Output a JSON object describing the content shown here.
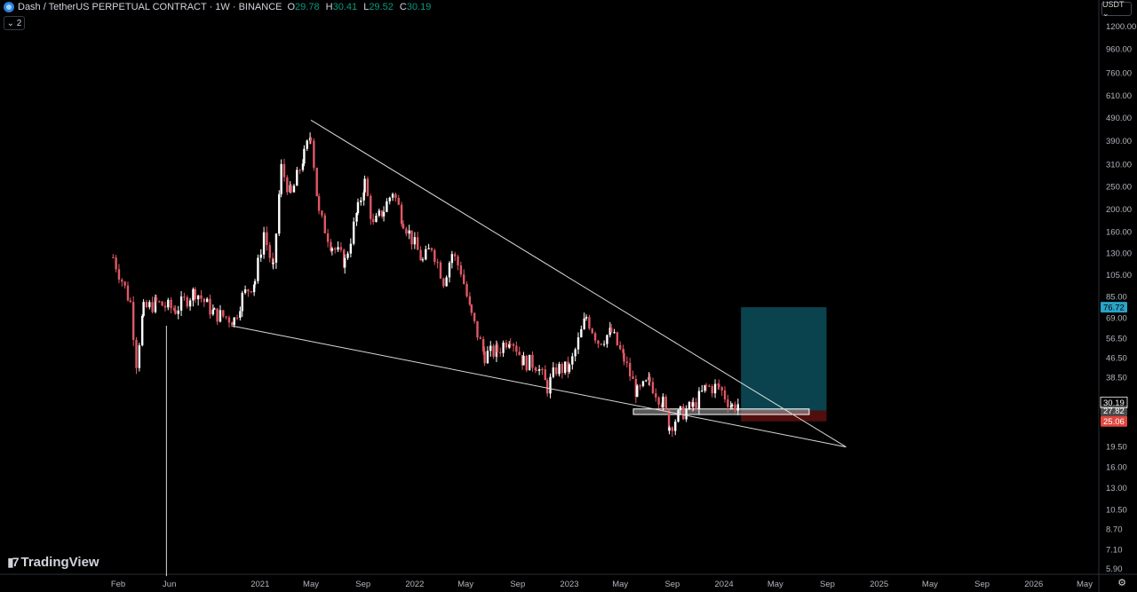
{
  "header": {
    "symbol": "Dash / TetherUS PERPETUAL CONTRACT · 1W · BINANCE",
    "open_label": "O",
    "open": "29.78",
    "high_label": "H",
    "high": "30.41",
    "low_label": "L",
    "low": "29.52",
    "close_label": "C",
    "close": "30.19",
    "collapse": "⌄ 2",
    "currency": "USDT ⌄"
  },
  "brand": {
    "name": "TradingView"
  },
  "colors": {
    "up": "#ffffff",
    "down": "#e05864",
    "target": "#0c4f5a",
    "stop": "#5a1010",
    "line": "#d9d9d9",
    "last": "#ffffff",
    "badge_target": "#2aa4c7",
    "badge_stop": "#e0463f",
    "badge_mid": "#4a4a4a"
  },
  "chart_data": {
    "type": "candlestick",
    "y_scale": "log",
    "y_ticks": [
      "1200.00",
      "960.00",
      "760.00",
      "610.00",
      "490.00",
      "390.00",
      "310.00",
      "250.00",
      "200.00",
      "160.00",
      "130.00",
      "105.00",
      "85.00",
      "69.00",
      "56.50",
      "46.50",
      "38.50",
      "30.19",
      "19.50",
      "16.00",
      "13.00",
      "10.50",
      "8.70",
      "7.10",
      "5.90"
    ],
    "y_tick_values": [
      1200,
      960,
      760,
      610,
      490,
      390,
      310,
      250,
      200,
      160,
      130,
      105,
      85,
      69,
      56.5,
      46.5,
      38.5,
      30.19,
      19.5,
      16,
      13,
      10.5,
      8.7,
      7.1,
      5.9
    ],
    "x_labels": [
      "Feb",
      "Jun",
      "2021",
      "May",
      "Sep",
      "2022",
      "May",
      "Sep",
      "2023",
      "May",
      "Sep",
      "2024",
      "May",
      "Sep",
      "2025",
      "May",
      "Sep",
      "2026",
      "May"
    ],
    "x_label_dates": [
      "2020-02-01",
      "2020-06-01",
      "2021-01-01",
      "2021-05-01",
      "2021-09-01",
      "2022-01-01",
      "2022-05-01",
      "2022-09-01",
      "2023-01-01",
      "2023-05-01",
      "2023-09-01",
      "2024-01-01",
      "2024-05-01",
      "2024-09-01",
      "2025-01-01",
      "2025-05-01",
      "2025-09-01",
      "2026-01-01",
      "2026-05-01"
    ],
    "price_path": [
      [
        "2020-01-20",
        125
      ],
      [
        "2020-02-10",
        100
      ],
      [
        "2020-03-01",
        80
      ],
      [
        "2020-03-15",
        45
      ],
      [
        "2020-04-01",
        75
      ],
      [
        "2020-05-01",
        80
      ],
      [
        "2020-06-15",
        75
      ],
      [
        "2020-08-01",
        90
      ],
      [
        "2020-09-15",
        72
      ],
      [
        "2020-11-01",
        68
      ],
      [
        "2020-11-20",
        85
      ],
      [
        "2020-12-20",
        100
      ],
      [
        "2021-01-10",
        160
      ],
      [
        "2021-02-01",
        110
      ],
      [
        "2021-02-20",
        300
      ],
      [
        "2021-03-15",
        230
      ],
      [
        "2021-04-15",
        340
      ],
      [
        "2021-05-01",
        420
      ],
      [
        "2021-05-20",
        190
      ],
      [
        "2021-06-20",
        140
      ],
      [
        "2021-07-20",
        120
      ],
      [
        "2021-08-20",
        200
      ],
      [
        "2021-09-05",
        260
      ],
      [
        "2021-09-25",
        170
      ],
      [
        "2021-10-20",
        200
      ],
      [
        "2021-11-10",
        240
      ],
      [
        "2021-12-05",
        180
      ],
      [
        "2021-12-25",
        150
      ],
      [
        "2022-01-20",
        120
      ],
      [
        "2022-02-10",
        140
      ],
      [
        "2022-03-10",
        100
      ],
      [
        "2022-03-30",
        130
      ],
      [
        "2022-04-20",
        110
      ],
      [
        "2022-05-15",
        70
      ],
      [
        "2022-06-15",
        48
      ],
      [
        "2022-07-15",
        50
      ],
      [
        "2022-08-15",
        58
      ],
      [
        "2022-09-15",
        45
      ],
      [
        "2022-10-15",
        44
      ],
      [
        "2022-11-10",
        35
      ],
      [
        "2022-12-01",
        42
      ],
      [
        "2023-01-01",
        42
      ],
      [
        "2023-02-10",
        70
      ],
      [
        "2023-03-10",
        55
      ],
      [
        "2023-04-10",
        60
      ],
      [
        "2023-05-10",
        46
      ],
      [
        "2023-06-10",
        33
      ],
      [
        "2023-07-10",
        37
      ],
      [
        "2023-08-10",
        30
      ],
      [
        "2023-08-25",
        24
      ],
      [
        "2023-09-20",
        27
      ],
      [
        "2023-10-20",
        29
      ],
      [
        "2023-11-20",
        35
      ],
      [
        "2023-12-20",
        35
      ],
      [
        "2024-01-20",
        29
      ],
      [
        "2024-02-10",
        30.19
      ]
    ],
    "trendlines": [
      {
        "from": [
          "2021-05-01",
          480
        ],
        "to": [
          "2024-10-15",
          19.5
        ]
      },
      {
        "from": [
          "2020-10-25",
          64
        ],
        "to": [
          "2024-10-15",
          19.5
        ]
      },
      {
        "from": [
          "2020-05-25",
          64
        ],
        "to": [
          "2020-05-25",
          5.5
        ]
      }
    ],
    "position": {
      "entry": 27.82,
      "stop": 25.06,
      "target": 76.72,
      "start": "2024-02-10",
      "end": "2024-08-30",
      "zone_top": 28.3,
      "zone_bottom": 26.8,
      "zone_start": "2023-06-01",
      "zone_end": "2024-07-20"
    },
    "badges": {
      "target": "76.72",
      "last": "30.19",
      "entry": "27.82",
      "stop": "25.06"
    }
  }
}
